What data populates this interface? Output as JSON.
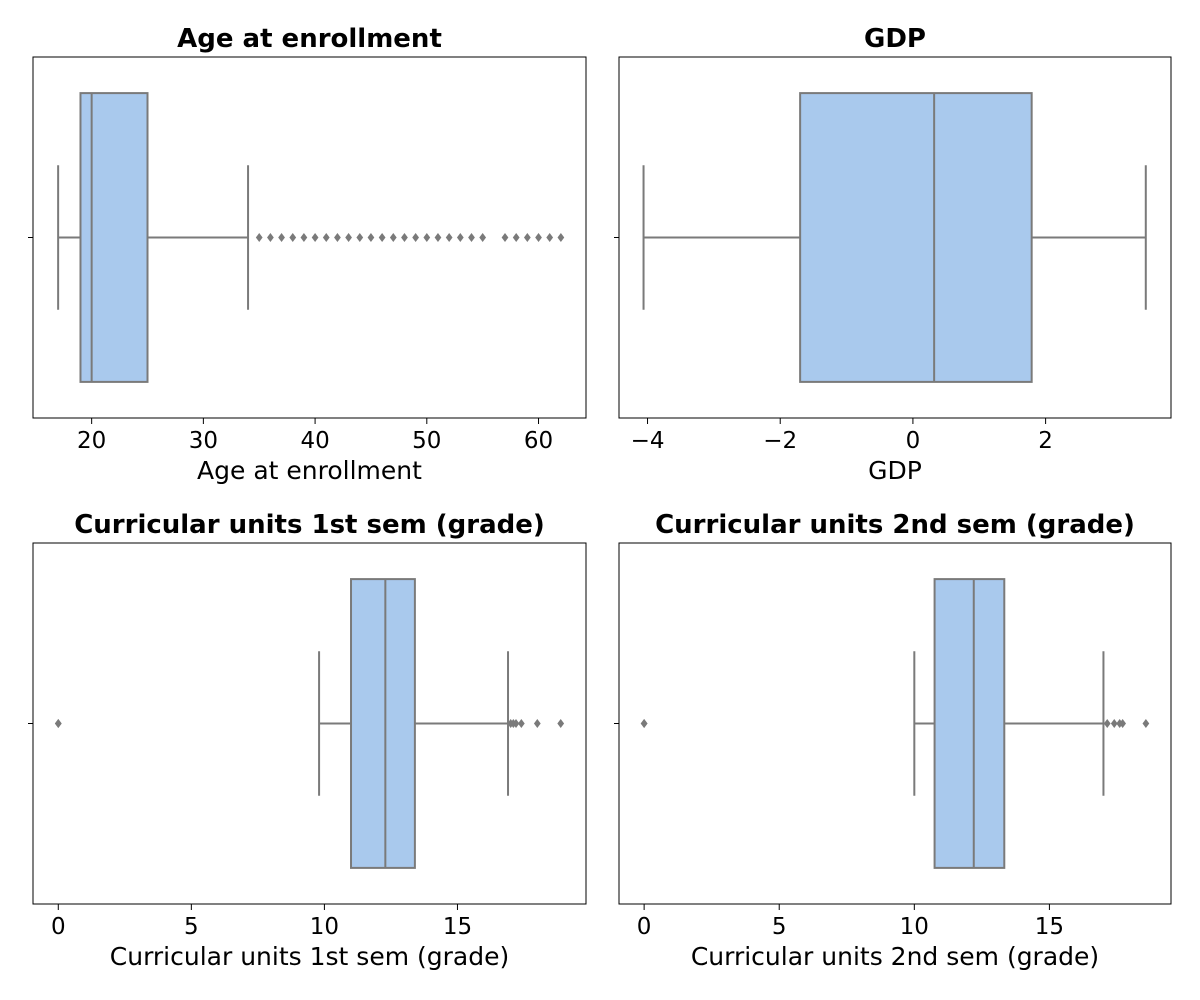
{
  "style": {
    "box_fill": "#a9c9ed",
    "line_color": "#7a7a7a",
    "frame_color": "#000000"
  },
  "chart_data": [
    {
      "type": "box",
      "title": "Age at enrollment",
      "xlabel": "Age at enrollment",
      "xlim": [
        14.75,
        64.25
      ],
      "ticks": [
        20,
        30,
        40,
        50,
        60
      ],
      "tick_labels": [
        "20",
        "30",
        "40",
        "50",
        "60"
      ],
      "whisker_low": 17,
      "q1": 19,
      "median": 20,
      "q3": 25,
      "whisker_high": 34,
      "outliers": [
        35,
        36,
        37,
        38,
        39,
        40,
        41,
        42,
        43,
        44,
        45,
        46,
        47,
        48,
        49,
        50,
        51,
        52,
        53,
        54,
        55,
        57,
        58,
        59,
        60,
        61,
        62
      ]
    },
    {
      "type": "box",
      "title": "GDP",
      "xlabel": "GDP",
      "xlim": [
        -4.43,
        3.89
      ],
      "ticks": [
        -4,
        -2,
        0,
        2
      ],
      "tick_labels": [
        "−4",
        "−2",
        "0",
        "2"
      ],
      "whisker_low": -4.06,
      "q1": -1.7,
      "median": 0.32,
      "q3": 1.79,
      "whisker_high": 3.51,
      "outliers": []
    },
    {
      "type": "box",
      "title": "Curricular units 1st sem (grade)",
      "xlabel": "Curricular units 1st sem (grade)",
      "xlim": [
        -0.95,
        19.83
      ],
      "ticks": [
        0,
        5,
        10,
        15
      ],
      "tick_labels": [
        "0",
        "5",
        "10",
        "15"
      ],
      "whisker_low": 9.8,
      "q1": 11.0,
      "median": 12.29,
      "q3": 13.4,
      "whisker_high": 16.9,
      "outliers": [
        0,
        0,
        17.0,
        17.1,
        17.2,
        17.4,
        18.0,
        18.88
      ]
    },
    {
      "type": "box",
      "title": "Curricular units 2nd sem (grade)",
      "xlabel": "Curricular units 2nd sem (grade)",
      "xlim": [
        -0.93,
        19.5
      ],
      "ticks": [
        0,
        5,
        10,
        15
      ],
      "tick_labels": [
        "0",
        "5",
        "10",
        "15"
      ],
      "whisker_low": 10.0,
      "q1": 10.75,
      "median": 12.2,
      "q3": 13.33,
      "whisker_high": 17.0,
      "outliers": [
        0,
        0,
        17.14,
        17.4,
        17.6,
        17.71,
        18.57
      ]
    }
  ]
}
